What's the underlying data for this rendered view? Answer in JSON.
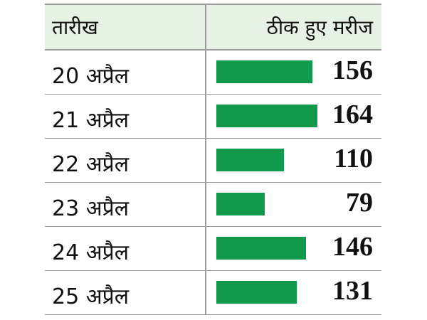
{
  "header": {
    "date_label": "तारीख",
    "value_label": "ठीक हुए मरीज"
  },
  "colors": {
    "bar": "#119a4c",
    "header_bg": "#e6f2e3",
    "rule": "#9a9a9a"
  },
  "chart_data": {
    "type": "bar",
    "orientation": "horizontal",
    "categories": [
      "20 अप्रैल",
      "21 अप्रैल",
      "22 अप्रैल",
      "23 अप्रैल",
      "24 अप्रैल",
      "25 अप्रैल"
    ],
    "values": [
      156,
      164,
      110,
      79,
      146,
      131
    ],
    "xlabel": "",
    "ylabel": "",
    "xlim": [
      0,
      164
    ],
    "grid": false,
    "legend": "none"
  }
}
